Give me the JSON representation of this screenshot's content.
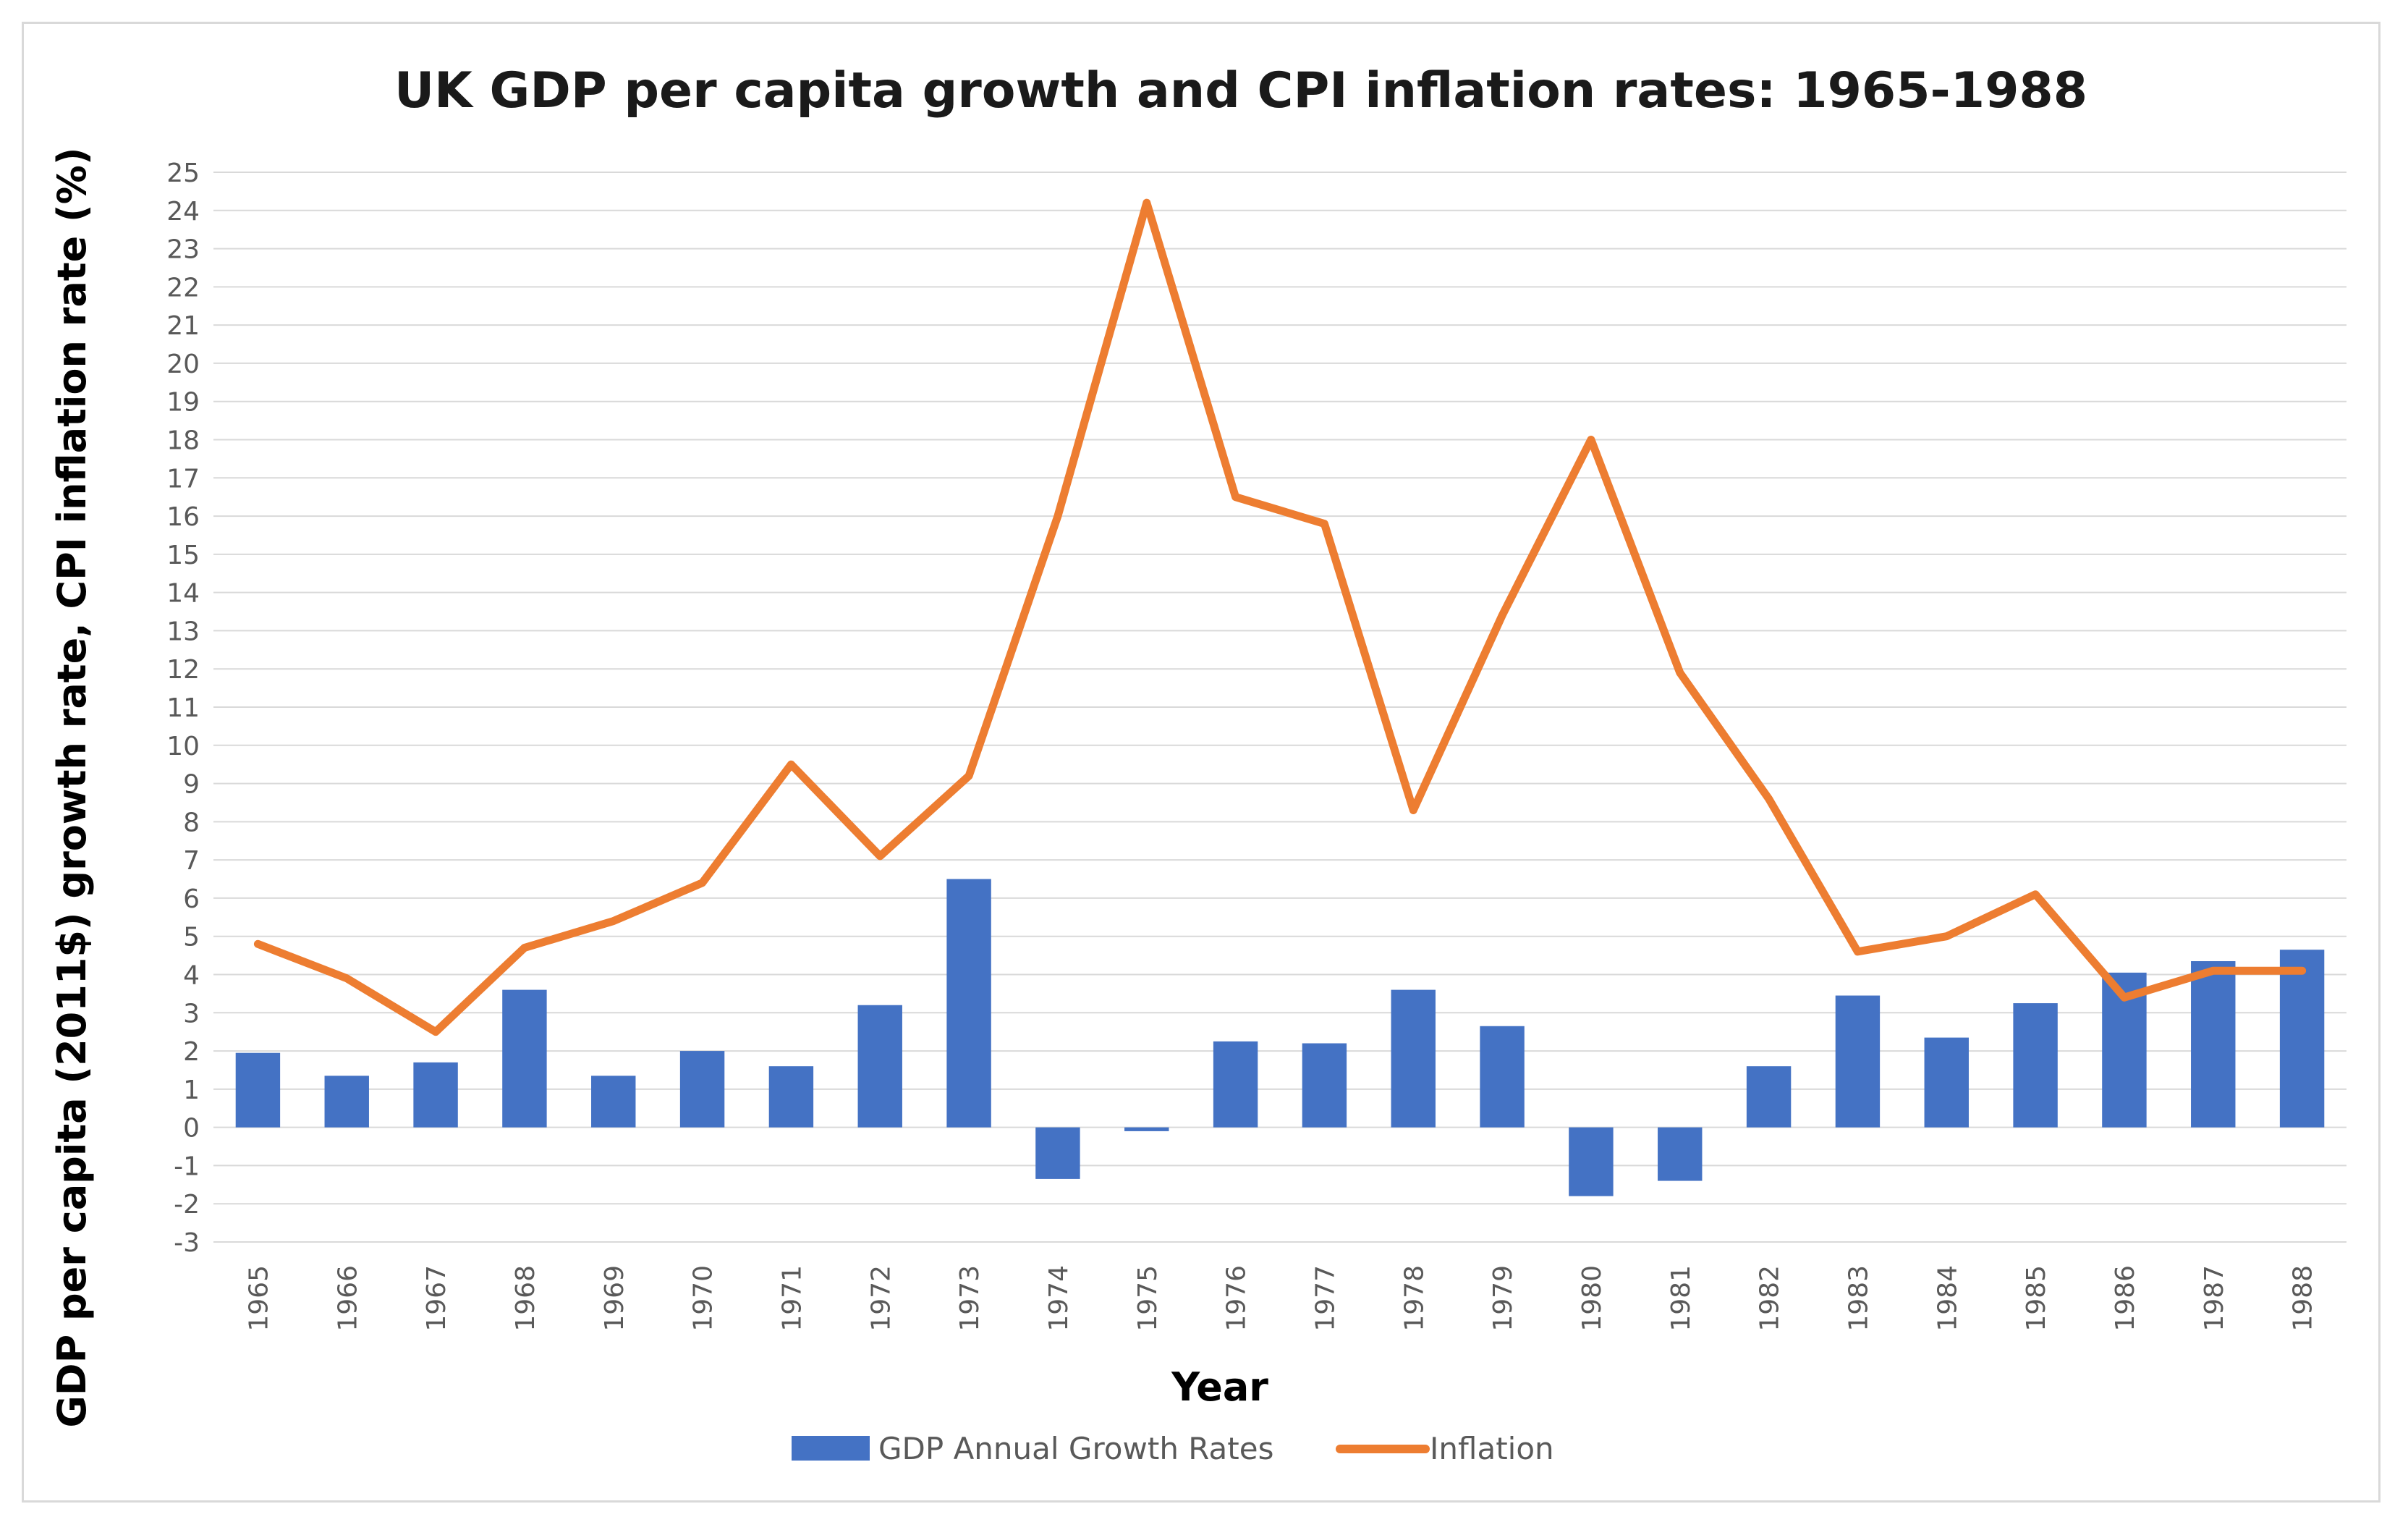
{
  "chart_data": {
    "type": "bar",
    "title": "UK GDP per capita growth and CPI inflation rates: 1965-1988",
    "xlabel": "Year",
    "ylabel": "GDP per capita (2011$) growth rate, CPI inflation rate (%)",
    "ylim": [
      -3,
      25
    ],
    "yticks": [
      "-3",
      "-2",
      "-1",
      "0",
      "1",
      "2",
      "3",
      "4",
      "5",
      "6",
      "7",
      "8",
      "9",
      "10",
      "11",
      "12",
      "13",
      "14",
      "15",
      "16",
      "17",
      "18",
      "19",
      "20",
      "21",
      "22",
      "23",
      "24",
      "25"
    ],
    "grid": true,
    "legend_position": "bottom",
    "categories": [
      "1965",
      "1966",
      "1967",
      "1968",
      "1969",
      "1970",
      "1971",
      "1972",
      "1973",
      "1974",
      "1975",
      "1976",
      "1977",
      "1978",
      "1979",
      "1980",
      "1981",
      "1982",
      "1983",
      "1984",
      "1985",
      "1986",
      "1987",
      "1988"
    ],
    "series": [
      {
        "name": "GDP Annual Growth Rates",
        "kind": "bar",
        "color": "#4472c4",
        "values": [
          1.95,
          1.35,
          1.7,
          3.6,
          1.35,
          2.0,
          1.6,
          3.2,
          6.5,
          -1.35,
          -0.1,
          2.25,
          2.2,
          3.6,
          2.65,
          -1.8,
          -1.4,
          1.6,
          3.45,
          2.35,
          3.25,
          4.05,
          4.35,
          4.65
        ]
      },
      {
        "name": "Inflation",
        "kind": "line",
        "color": "#ed7d31",
        "values": [
          4.8,
          3.9,
          2.5,
          4.7,
          5.4,
          6.4,
          9.5,
          7.1,
          9.2,
          16.0,
          24.2,
          16.5,
          15.8,
          8.3,
          13.4,
          18.0,
          11.9,
          8.6,
          4.6,
          5.0,
          6.1,
          3.4,
          4.1,
          4.1
        ]
      }
    ]
  }
}
